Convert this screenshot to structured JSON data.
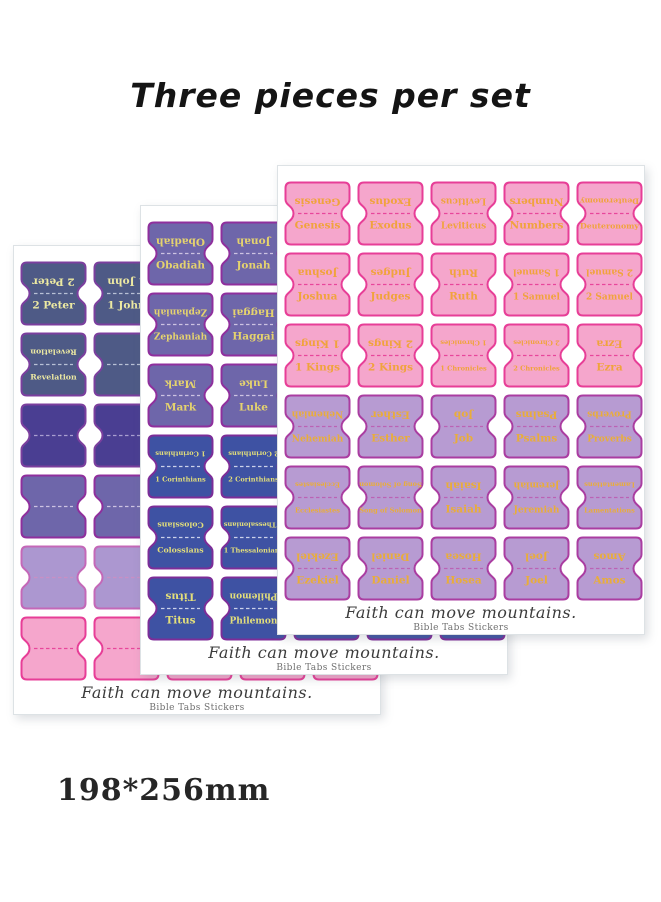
{
  "title": "Three pieces per set",
  "size_label": "198*256mm",
  "footer": {
    "slogan": "Faith can move mountains.",
    "brand": "Bible Tabs Stickers"
  },
  "tab_styles": {
    "pink": {
      "fill": "#f5a6cc",
      "stroke": "#e73e97",
      "text": "#f0a33c",
      "dash": "#e8469b"
    },
    "mauve": {
      "fill": "#b79bd2",
      "stroke": "#aa3da1",
      "text": "#e9ad3a",
      "dash": "#bb62b5"
    },
    "purple": {
      "fill": "#6e66aa",
      "stroke": "#8f2f9d",
      "text": "#e5d36e",
      "dash": "#cdc3e2"
    },
    "blue": {
      "fill": "#3e52a3",
      "stroke": "#7c2d98",
      "text": "#e3df7a",
      "dash": "#ccd2ea"
    },
    "navy": {
      "fill": "#4e5a86",
      "stroke": "#7b3f9e",
      "text": "#ece9a2",
      "dash": "#b9c1d6"
    },
    "indigo": {
      "fill": "#4a3e92",
      "stroke": "#7b3f9e",
      "text": "#ece9a2",
      "dash": "#a99fd0"
    },
    "lavender": {
      "fill": "#ac97d0",
      "stroke": "#c468b8",
      "text": "#ffffff",
      "dash": "#c98fc4"
    }
  },
  "sheets": [
    {
      "name": "back-sheet",
      "rows": [
        {
          "style": "navy",
          "tabs": [
            "2 Peter",
            "1 John",
            "",
            "",
            ""
          ]
        },
        {
          "style": "navy",
          "tabs": [
            "Revelation",
            "",
            "",
            "",
            ""
          ]
        },
        {
          "style": "indigo",
          "tabs": [
            "",
            "",
            "",
            "",
            ""
          ]
        },
        {
          "style": "purple",
          "tabs": [
            "",
            "",
            "",
            "",
            ""
          ]
        },
        {
          "style": "lavender",
          "tabs": [
            "",
            "",
            "",
            "",
            ""
          ]
        },
        {
          "style": "pink",
          "tabs": [
            "",
            "",
            "",
            "",
            ""
          ]
        }
      ]
    },
    {
      "name": "middle-sheet",
      "rows": [
        {
          "style": "purple",
          "tabs": [
            "Obadiah",
            "Jonah",
            "",
            "",
            ""
          ]
        },
        {
          "style": "purple",
          "tabs": [
            "Zephaniah",
            "Haggai",
            "",
            "",
            ""
          ]
        },
        {
          "style": "purple",
          "tabs": [
            "Mark",
            "Luke",
            "",
            "",
            ""
          ]
        },
        {
          "style": "blue",
          "tabs": [
            "1 Corinthians",
            "2 Corinthians",
            "",
            "",
            ""
          ]
        },
        {
          "style": "blue",
          "tabs": [
            "Colossians",
            "1 Thessalonians",
            "",
            "",
            ""
          ]
        },
        {
          "style": "blue",
          "tabs": [
            "Titus",
            "Philemon",
            "",
            "",
            ""
          ]
        }
      ]
    },
    {
      "name": "front-sheet",
      "rows": [
        {
          "style": "pink",
          "tabs": [
            "Genesis",
            "Exodus",
            "Leviticus",
            "Numbers",
            "Deuteronomy"
          ]
        },
        {
          "style": "pink",
          "tabs": [
            "Joshua",
            "Judges",
            "Ruth",
            "1 Samuel",
            "2 Samuel"
          ]
        },
        {
          "style": "pink",
          "tabs": [
            "1 Kings",
            "2 Kings",
            "1 Chronicles",
            "2 Chronicles",
            "Ezra"
          ]
        },
        {
          "style": "mauve",
          "tabs": [
            "Nehemiah",
            "Esther",
            "Job",
            "Psalms",
            "Proverbs"
          ]
        },
        {
          "style": "mauve",
          "tabs": [
            "Ecclesiastes",
            "Song of Solomon",
            "Isaiah",
            "Jeremiah",
            "Lamentations"
          ]
        },
        {
          "style": "mauve",
          "tabs": [
            "Ezekiel",
            "Daniel",
            "Hosea",
            "Joel",
            "Amos"
          ]
        }
      ]
    }
  ]
}
